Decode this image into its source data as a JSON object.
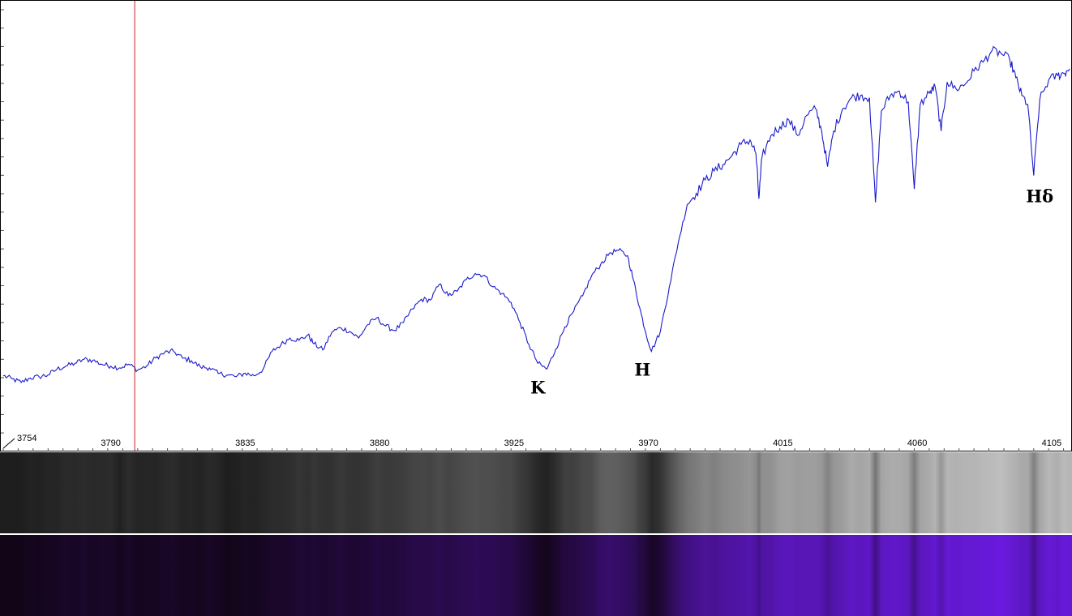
{
  "chart_data": {
    "type": "line",
    "title": "",
    "xlabel": "",
    "ylabel": "",
    "xlim": [
      3754,
      4111
    ],
    "ylim": [
      0,
      1
    ],
    "grid": false,
    "x_ticks": [
      3754,
      3790,
      3835,
      3880,
      3925,
      3970,
      4015,
      4060,
      4105
    ],
    "x_tick_labels": [
      "3754",
      "3790",
      "3835",
      "3880",
      "3925",
      "3970",
      "4015",
      "4060",
      "4105"
    ],
    "cursor_x": 3798,
    "annotations": [
      {
        "text": "K",
        "x": 3933,
        "y": 0.13
      },
      {
        "text": "H",
        "x": 3968,
        "y": 0.17
      },
      {
        "text": "Hδ",
        "x": 4101,
        "y": 0.56
      }
    ],
    "series": [
      {
        "color": "#1a1acc",
        "points": [
          [
            3754,
            0.17
          ],
          [
            3757,
            0.163
          ],
          [
            3760,
            0.155
          ],
          [
            3763,
            0.165
          ],
          [
            3766,
            0.168
          ],
          [
            3769,
            0.172
          ],
          [
            3772,
            0.185
          ],
          [
            3775,
            0.192
          ],
          [
            3778,
            0.198
          ],
          [
            3781,
            0.207
          ],
          [
            3784,
            0.205
          ],
          [
            3787,
            0.196
          ],
          [
            3790,
            0.192
          ],
          [
            3793,
            0.188
          ],
          [
            3796,
            0.196
          ],
          [
            3799,
            0.183
          ],
          [
            3802,
            0.192
          ],
          [
            3805,
            0.21
          ],
          [
            3808,
            0.222
          ],
          [
            3811,
            0.225
          ],
          [
            3814,
            0.21
          ],
          [
            3817,
            0.204
          ],
          [
            3820,
            0.19
          ],
          [
            3823,
            0.188
          ],
          [
            3826,
            0.175
          ],
          [
            3829,
            0.172
          ],
          [
            3832,
            0.168
          ],
          [
            3835,
            0.176
          ],
          [
            3838,
            0.17
          ],
          [
            3841,
            0.185
          ],
          [
            3844,
            0.225
          ],
          [
            3847,
            0.24
          ],
          [
            3850,
            0.255
          ],
          [
            3853,
            0.25
          ],
          [
            3856,
            0.262
          ],
          [
            3858,
            0.242
          ],
          [
            3861,
            0.228
          ],
          [
            3864,
            0.268
          ],
          [
            3867,
            0.278
          ],
          [
            3870,
            0.27
          ],
          [
            3873,
            0.255
          ],
          [
            3876,
            0.285
          ],
          [
            3879,
            0.3
          ],
          [
            3882,
            0.282
          ],
          [
            3885,
            0.272
          ],
          [
            3888,
            0.29
          ],
          [
            3891,
            0.32
          ],
          [
            3894,
            0.342
          ],
          [
            3897,
            0.34
          ],
          [
            3900,
            0.376
          ],
          [
            3903,
            0.35
          ],
          [
            3906,
            0.36
          ],
          [
            3909,
            0.386
          ],
          [
            3912,
            0.4
          ],
          [
            3915,
            0.396
          ],
          [
            3918,
            0.37
          ],
          [
            3921,
            0.355
          ],
          [
            3924,
            0.335
          ],
          [
            3927,
            0.29
          ],
          [
            3930,
            0.24
          ],
          [
            3933,
            0.198
          ],
          [
            3936,
            0.185
          ],
          [
            3939,
            0.23
          ],
          [
            3942,
            0.28
          ],
          [
            3945,
            0.315
          ],
          [
            3948,
            0.35
          ],
          [
            3951,
            0.395
          ],
          [
            3954,
            0.42
          ],
          [
            3957,
            0.446
          ],
          [
            3960,
            0.452
          ],
          [
            3963,
            0.44
          ],
          [
            3965,
            0.385
          ],
          [
            3967,
            0.325
          ],
          [
            3969,
            0.27
          ],
          [
            3971,
            0.225
          ],
          [
            3974,
            0.27
          ],
          [
            3977,
            0.37
          ],
          [
            3980,
            0.47
          ],
          [
            3983,
            0.555
          ],
          [
            3986,
            0.58
          ],
          [
            3989,
            0.61
          ],
          [
            3992,
            0.63
          ],
          [
            3995,
            0.645
          ],
          [
            3998,
            0.665
          ],
          [
            4001,
            0.69
          ],
          [
            4004,
            0.7
          ],
          [
            4006,
            0.67
          ],
          [
            4007,
            0.568
          ],
          [
            4008,
            0.66
          ],
          [
            4011,
            0.71
          ],
          [
            4014,
            0.73
          ],
          [
            4017,
            0.745
          ],
          [
            4020,
            0.71
          ],
          [
            4023,
            0.755
          ],
          [
            4026,
            0.77
          ],
          [
            4028,
            0.72
          ],
          [
            4030,
            0.64
          ],
          [
            4032,
            0.72
          ],
          [
            4035,
            0.77
          ],
          [
            4038,
            0.795
          ],
          [
            4041,
            0.8
          ],
          [
            4044,
            0.795
          ],
          [
            4046,
            0.56
          ],
          [
            4048,
            0.765
          ],
          [
            4051,
            0.8
          ],
          [
            4054,
            0.81
          ],
          [
            4057,
            0.785
          ],
          [
            4059,
            0.59
          ],
          [
            4061,
            0.78
          ],
          [
            4064,
            0.805
          ],
          [
            4066,
            0.82
          ],
          [
            4068,
            0.72
          ],
          [
            4070,
            0.83
          ],
          [
            4073,
            0.815
          ],
          [
            4076,
            0.825
          ],
          [
            4079,
            0.855
          ],
          [
            4082,
            0.875
          ],
          [
            4085,
            0.9
          ],
          [
            4088,
            0.895
          ],
          [
            4091,
            0.88
          ],
          [
            4093,
            0.84
          ],
          [
            4095,
            0.8
          ],
          [
            4097,
            0.78
          ],
          [
            4099,
            0.62
          ],
          [
            4101,
            0.79
          ],
          [
            4104,
            0.835
          ],
          [
            4107,
            0.845
          ],
          [
            4109,
            0.85
          ],
          [
            4111,
            0.86
          ]
        ]
      }
    ]
  },
  "spectrum_strips": [
    {
      "name": "grayscale",
      "left_color": "#1e1e1e",
      "right_color": "#bfbfbf"
    },
    {
      "name": "color",
      "left_color": "#120518",
      "right_color": "#6a1ae0"
    }
  ]
}
